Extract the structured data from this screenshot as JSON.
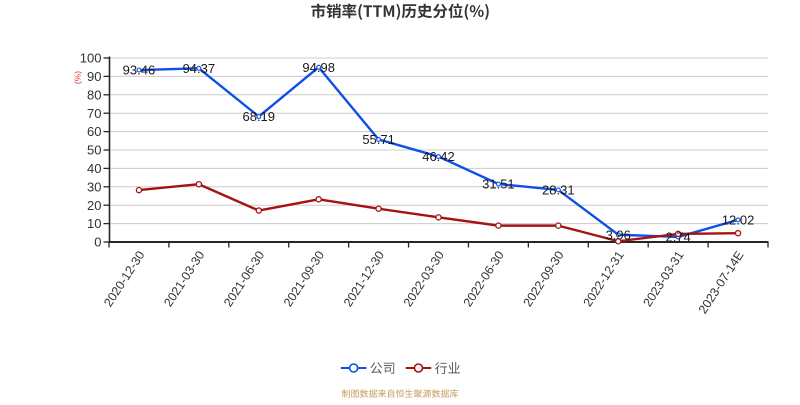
{
  "page": {
    "background": "#ffffff"
  },
  "chart_data": {
    "type": "line",
    "title": "市销率(TTM)历史分位(%)",
    "y_axis_label": "(%)",
    "ylim": [
      0,
      100
    ],
    "y_ticks": [
      0,
      10,
      20,
      30,
      40,
      50,
      60,
      70,
      80,
      90,
      100
    ],
    "grid": true,
    "categories": [
      "2020-12-30",
      "2021-03-30",
      "2021-06-30",
      "2021-09-30",
      "2021-12-30",
      "2022-03-30",
      "2022-06-30",
      "2022-09-30",
      "2022-12-31",
      "2023-03-31",
      "2023-07-14E"
    ],
    "series": [
      {
        "name": "公司",
        "color": "#0d4fe8",
        "show_point_labels": true,
        "values": [
          93.46,
          94.37,
          68.19,
          94.98,
          55.71,
          46.42,
          31.51,
          28.31,
          3.96,
          2.74,
          12.02
        ]
      },
      {
        "name": "行业",
        "color": "#a51212",
        "show_point_labels": false,
        "values": [
          28.2,
          31.4,
          17.1,
          23.2,
          18.1,
          13.4,
          8.9,
          8.9,
          0.4,
          4.4,
          4.8
        ]
      }
    ],
    "legend_position": "bottom",
    "source_note": "制图数据来自恒生聚源数据库"
  },
  "colors": {
    "grid": "#cccccc",
    "axis": "#262626",
    "title": "#333333",
    "tick_label": "#333333",
    "point_label": "#1a1a1a",
    "legend_text": "#595959",
    "note": "#c49a58",
    "y_axis_label": "#e23333"
  }
}
